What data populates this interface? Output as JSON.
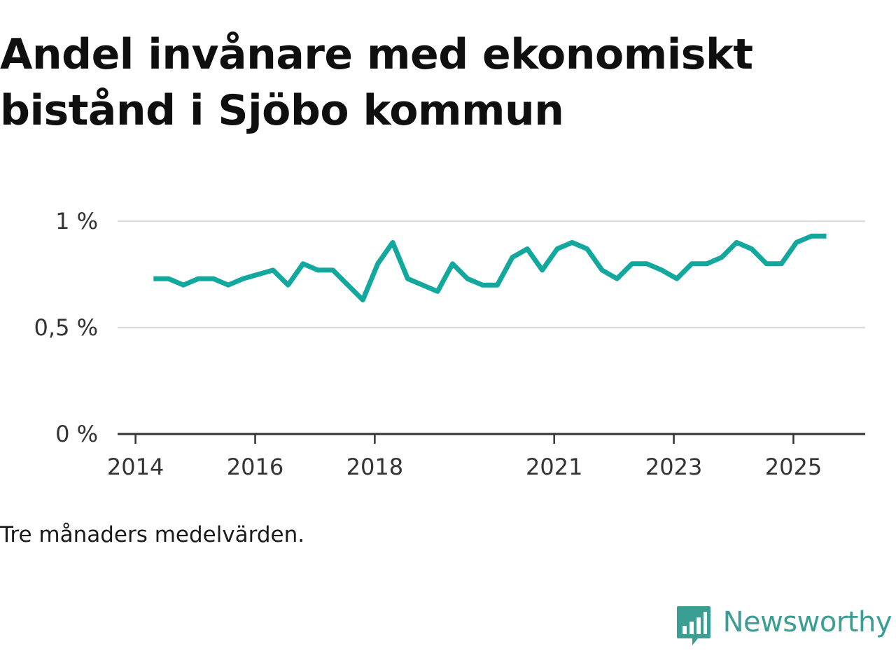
{
  "title": "Andel invånare med ekonomiskt bistånd i Sjöbo kommun",
  "note": "Tre månaders medelvärden.",
  "brand": {
    "name": "Newsworthy",
    "icon": "newsworthy-logo-icon",
    "color": "#3a9e92"
  },
  "colors": {
    "line": "#13a89e",
    "grid": "#dddddd",
    "axis": "#333333"
  },
  "chart_data": {
    "type": "line",
    "title": "Andel invånare med ekonomiskt bistånd i Sjöbo kommun",
    "xlabel": "",
    "ylabel": "",
    "ylim": [
      0,
      1
    ],
    "yticks": [
      {
        "value": 0,
        "label": "0 %"
      },
      {
        "value": 0.5,
        "label": "0,5 %"
      },
      {
        "value": 1,
        "label": "1 %"
      }
    ],
    "xticks": [
      {
        "value": 2014,
        "label": "2014"
      },
      {
        "value": 2016,
        "label": "2016"
      },
      {
        "value": 2018,
        "label": "2018"
      },
      {
        "value": 2021,
        "label": "2021"
      },
      {
        "value": 2023,
        "label": "2023"
      },
      {
        "value": 2025,
        "label": "2025"
      }
    ],
    "xlim": [
      2013.7,
      2026.2
    ],
    "grid": true,
    "series": [
      {
        "name": "Andel invånare med ekonomiskt bistånd",
        "x": [
          2014.3,
          2014.55,
          2014.8,
          2015.05,
          2015.3,
          2015.55,
          2015.8,
          2016.05,
          2016.3,
          2016.55,
          2016.8,
          2017.05,
          2017.3,
          2017.55,
          2017.8,
          2018.05,
          2018.3,
          2018.55,
          2018.8,
          2019.05,
          2019.3,
          2019.55,
          2019.8,
          2020.05,
          2020.3,
          2020.55,
          2020.8,
          2021.05,
          2021.3,
          2021.55,
          2021.8,
          2022.05,
          2022.3,
          2022.55,
          2022.8,
          2023.05,
          2023.3,
          2023.55,
          2023.8,
          2024.05,
          2024.3,
          2024.55,
          2024.8,
          2025.05,
          2025.3,
          2025.55
        ],
        "values": [
          0.73,
          0.73,
          0.7,
          0.73,
          0.73,
          0.7,
          0.73,
          0.75,
          0.77,
          0.7,
          0.8,
          0.77,
          0.77,
          0.7,
          0.63,
          0.8,
          0.9,
          0.73,
          0.7,
          0.67,
          0.8,
          0.73,
          0.7,
          0.7,
          0.83,
          0.87,
          0.77,
          0.87,
          0.9,
          0.87,
          0.77,
          0.73,
          0.8,
          0.8,
          0.77,
          0.73,
          0.8,
          0.8,
          0.83,
          0.9,
          0.87,
          0.8,
          0.8,
          0.9,
          0.93,
          0.93
        ]
      }
    ]
  }
}
